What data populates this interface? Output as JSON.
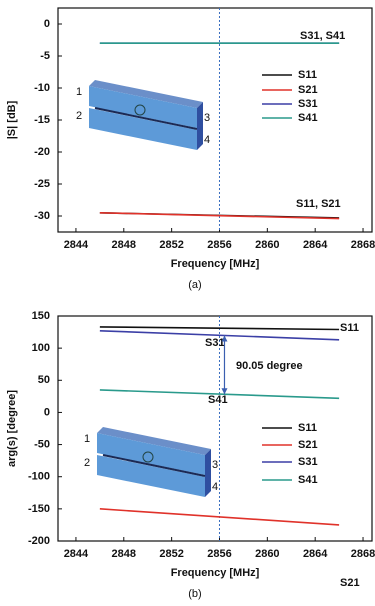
{
  "chart_data": [
    {
      "type": "line",
      "panel_label": "(a)",
      "xlabel": "Frequency [MHz]",
      "ylabel": "|S| [dB]",
      "x": [
        2846,
        2866
      ],
      "series": [
        {
          "name": "S11",
          "color": "#111111",
          "values": [
            -29.5,
            -30.3
          ]
        },
        {
          "name": "S21",
          "color": "#e0322a",
          "values": [
            -29.5,
            -30.4
          ]
        },
        {
          "name": "S31",
          "color": "#3b3fa6",
          "values": [
            -3,
            -3
          ]
        },
        {
          "name": "S41",
          "color": "#2a9a8c",
          "values": [
            -3,
            -3
          ]
        }
      ],
      "xlim": [
        2842.5,
        2868.75
      ],
      "xticks": [
        2844,
        2848,
        2852,
        2856,
        2860,
        2864,
        2868
      ],
      "ylim": [
        -32.5,
        2.5
      ],
      "yticks": [
        0,
        -5,
        -10,
        -15,
        -20,
        -25,
        -30
      ],
      "vline": 2856,
      "annotations": [
        "S31, S41",
        "S11, S21"
      ],
      "inset_labels": [
        "1",
        "2",
        "3",
        "4"
      ]
    },
    {
      "type": "line",
      "panel_label": "(b)",
      "xlabel": "Frequency [MHz]",
      "ylabel": "arg(s) [degree]",
      "x": [
        2846,
        2866
      ],
      "series": [
        {
          "name": "S11",
          "color": "#111111",
          "values": [
            133,
            129
          ]
        },
        {
          "name": "S21",
          "color": "#e0322a",
          "values": [
            -150,
            -175
          ]
        },
        {
          "name": "S31",
          "color": "#3b3fa6",
          "values": [
            127,
            113
          ]
        },
        {
          "name": "S41",
          "color": "#2a9a8c",
          "values": [
            35,
            22
          ]
        }
      ],
      "xlim": [
        2842.5,
        2868.75
      ],
      "xticks": [
        2844,
        2848,
        2852,
        2856,
        2860,
        2864,
        2868
      ],
      "ylim": [
        -200,
        150
      ],
      "yticks": [
        150,
        100,
        50,
        0,
        -50,
        -100,
        -150,
        -200
      ],
      "vline": 2856,
      "annotations": [
        "S11",
        "S31",
        "90.05 degree",
        "S41",
        "S21"
      ],
      "inset_labels": [
        "1",
        "2",
        "3",
        "4"
      ]
    }
  ]
}
